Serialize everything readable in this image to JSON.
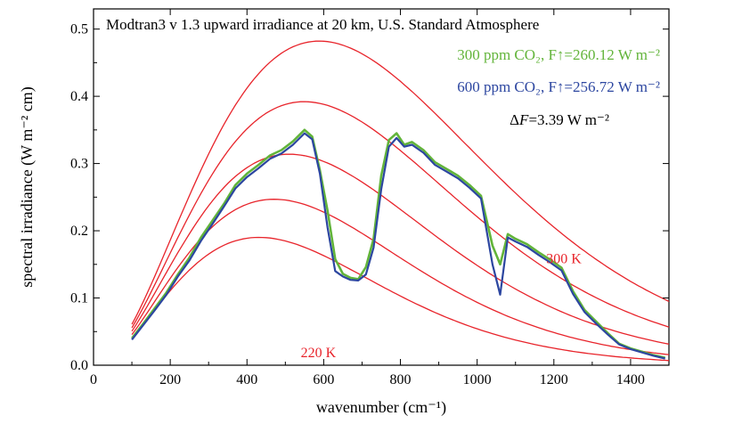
{
  "chart_data": {
    "type": "line",
    "title": "Modtran3 v 1.3 upward irradiance at 20 km, U.S. Standard Atmosphere",
    "xlabel": "wavenumber (cm⁻¹)",
    "ylabel": "spectral irradiance (W m⁻² cm)",
    "xlim": [
      0,
      1500
    ],
    "ylim": [
      0,
      0.53
    ],
    "xticks": [
      0,
      200,
      400,
      600,
      800,
      1000,
      1200,
      1400
    ],
    "yticks": [
      0.0,
      0.1,
      0.2,
      0.3,
      0.4,
      0.5
    ],
    "ytick_labels": [
      "0.0",
      "0.1",
      "0.2",
      "0.3",
      "0.4",
      "0.5"
    ],
    "legend": {
      "co2_300": {
        "text": "300 ppm CO₂, F↑=260.12 W m⁻²",
        "color": "#62b43a"
      },
      "co2_600": {
        "text": "600 ppm CO₂, F↑=256.72 W m⁻²",
        "color": "#2c46a0"
      },
      "delta": {
        "prefix": "Δ",
        "F": "F",
        "rest": "=3.39 W m⁻²",
        "color": "#000000"
      }
    },
    "curve_labels": [
      {
        "text": "300 K",
        "x": 1180,
        "y": 0.152
      },
      {
        "text": "220 K",
        "x": 540,
        "y": 0.012
      }
    ],
    "planck_temperatures": [
      220,
      240,
      260,
      280,
      300
    ],
    "planck_color": "#e8242b",
    "series": [
      {
        "color": "#62b43a",
        "x": [
          100,
          130,
          160,
          190,
          220,
          250,
          280,
          310,
          340,
          370,
          400,
          430,
          460,
          490,
          520,
          550,
          570,
          590,
          610,
          630,
          650,
          670,
          690,
          710,
          730,
          750,
          770,
          790,
          810,
          830,
          860,
          890,
          920,
          950,
          980,
          1010,
          1040,
          1060,
          1080,
          1100,
          1130,
          1160,
          1190,
          1220,
          1250,
          1280,
          1310,
          1340,
          1370,
          1400,
          1430,
          1460,
          1490
        ],
        "y": [
          0.04,
          0.062,
          0.085,
          0.108,
          0.135,
          0.16,
          0.19,
          0.215,
          0.24,
          0.268,
          0.285,
          0.298,
          0.312,
          0.32,
          0.333,
          0.35,
          0.34,
          0.29,
          0.23,
          0.158,
          0.136,
          0.13,
          0.128,
          0.146,
          0.188,
          0.282,
          0.335,
          0.345,
          0.328,
          0.332,
          0.32,
          0.302,
          0.292,
          0.282,
          0.268,
          0.252,
          0.178,
          0.15,
          0.195,
          0.188,
          0.18,
          0.168,
          0.157,
          0.145,
          0.11,
          0.082,
          0.065,
          0.048,
          0.032,
          0.025,
          0.02,
          0.015,
          0.011
        ]
      },
      {
        "color": "#2c46a0",
        "x": [
          100,
          130,
          160,
          190,
          220,
          250,
          280,
          310,
          340,
          370,
          400,
          430,
          460,
          490,
          520,
          550,
          570,
          590,
          610,
          630,
          650,
          670,
          690,
          710,
          730,
          750,
          770,
          790,
          810,
          830,
          860,
          890,
          920,
          950,
          980,
          1010,
          1040,
          1060,
          1080,
          1100,
          1130,
          1160,
          1190,
          1220,
          1250,
          1280,
          1310,
          1340,
          1370,
          1400,
          1430,
          1460,
          1490
        ],
        "y": [
          0.038,
          0.06,
          0.082,
          0.105,
          0.132,
          0.156,
          0.185,
          0.21,
          0.236,
          0.263,
          0.28,
          0.293,
          0.307,
          0.315,
          0.328,
          0.345,
          0.336,
          0.285,
          0.205,
          0.14,
          0.132,
          0.127,
          0.126,
          0.135,
          0.175,
          0.262,
          0.325,
          0.338,
          0.325,
          0.328,
          0.316,
          0.298,
          0.288,
          0.278,
          0.264,
          0.248,
          0.15,
          0.105,
          0.19,
          0.184,
          0.176,
          0.164,
          0.153,
          0.141,
          0.106,
          0.079,
          0.062,
          0.046,
          0.031,
          0.024,
          0.019,
          0.014,
          0.01
        ]
      }
    ]
  }
}
